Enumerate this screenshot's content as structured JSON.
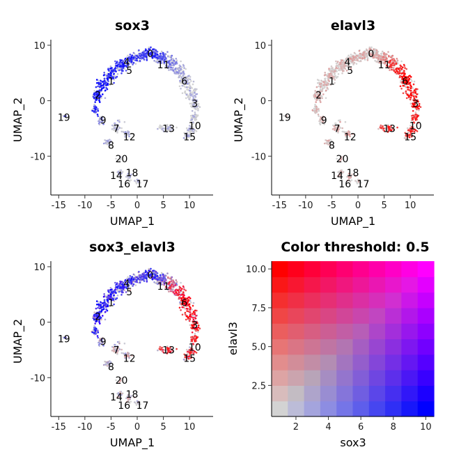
{
  "chart_data": [
    {
      "type": "scatter",
      "title": "sox3",
      "xlabel": "UMAP_1",
      "ylabel": "UMAP_2",
      "xticks": [
        "-15",
        "-10",
        "-5",
        "0",
        "5",
        "10"
      ],
      "yticks": [
        "10",
        "0",
        "-10"
      ],
      "xlim": [
        -16.5,
        14.5
      ],
      "ylim": [
        -17,
        11
      ],
      "grid": false,
      "cluster_labels": [
        {
          "label": "0",
          "x": 2.5,
          "y": 8.5
        },
        {
          "label": "1",
          "x": -5,
          "y": 3.5
        },
        {
          "label": "2",
          "x": -7.5,
          "y": 1
        },
        {
          "label": "3",
          "x": 11,
          "y": -0.5
        },
        {
          "label": "4",
          "x": -2,
          "y": 7
        },
        {
          "label": "5",
          "x": -1.5,
          "y": 5.5
        },
        {
          "label": "6",
          "x": 9,
          "y": 3.5
        },
        {
          "label": "7",
          "x": -4,
          "y": -5
        },
        {
          "label": "8",
          "x": -5,
          "y": -8
        },
        {
          "label": "9",
          "x": -6.5,
          "y": -3.5
        },
        {
          "label": "10",
          "x": 11,
          "y": -4.5
        },
        {
          "label": "11",
          "x": 5,
          "y": 6.5
        },
        {
          "label": "12",
          "x": -1.5,
          "y": -6.5
        },
        {
          "label": "13",
          "x": 6,
          "y": -5
        },
        {
          "label": "14",
          "x": -4,
          "y": -13.5
        },
        {
          "label": "15",
          "x": 10,
          "y": -6.5
        },
        {
          "label": "16",
          "x": -2.5,
          "y": -15
        },
        {
          "label": "17",
          "x": 1,
          "y": -15
        },
        {
          "label": "18",
          "x": -1,
          "y": -13
        },
        {
          "label": "19",
          "x": -14,
          "y": -3
        },
        {
          "label": "20",
          "x": -3,
          "y": -10.5
        }
      ]
    },
    {
      "type": "scatter",
      "title": "elavl3",
      "xlabel": "UMAP_1",
      "ylabel": "UMAP_2",
      "xticks": [
        "-15",
        "-10",
        "-5",
        "0",
        "5",
        "10"
      ],
      "yticks": [
        "10",
        "0",
        "-10"
      ],
      "xlim": [
        -16.5,
        14.5
      ],
      "ylim": [
        -17,
        11
      ],
      "grid": false
    },
    {
      "type": "scatter",
      "title": "sox3_elavl3",
      "xlabel": "UMAP_1",
      "ylabel": "UMAP_2",
      "xticks": [
        "-15",
        "-10",
        "-5",
        "0",
        "5",
        "10"
      ],
      "yticks": [
        "10",
        "0",
        "-10"
      ],
      "xlim": [
        -16.5,
        14.5
      ],
      "ylim": [
        -17,
        11
      ],
      "grid": false
    },
    {
      "type": "heatmap",
      "title": "Color threshold: 0.5",
      "xlabel": "sox3",
      "ylabel": "elavl3",
      "xticks": [
        "2",
        "4",
        "6",
        "8",
        "10"
      ],
      "yticks": [
        "2.5",
        "5.0",
        "7.5",
        "10.0"
      ],
      "xlim": [
        0.5,
        10.5
      ],
      "ylim": [
        0.5,
        10.5
      ],
      "grid_size": 10
    }
  ],
  "colors": {
    "low": "#d3d3d3",
    "sox3": "#0000ff",
    "elavl3": "#ff0000",
    "both": "#ff00ff"
  }
}
